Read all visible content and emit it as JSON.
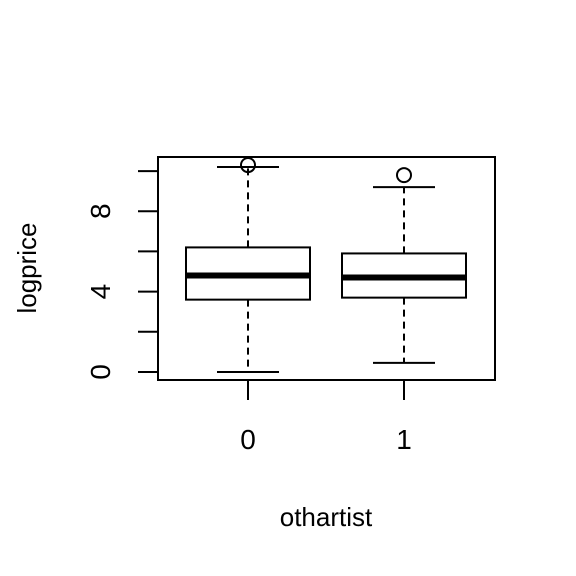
{
  "chart_data": {
    "type": "boxplot",
    "title": "",
    "xlabel": "othartist",
    "ylabel": "logprice",
    "ylim": [
      -0.4,
      10.7
    ],
    "yticks": [
      0,
      2,
      4,
      6,
      8,
      10
    ],
    "ytick_labels": [
      "0",
      "",
      "4",
      "",
      "8",
      ""
    ],
    "categories": [
      "0",
      "1"
    ],
    "boxes": [
      {
        "category": "0",
        "whisker_low": 0.0,
        "q1": 3.6,
        "median": 4.8,
        "q3": 6.2,
        "whisker_high": 10.2,
        "outliers": [
          10.3
        ]
      },
      {
        "category": "1",
        "whisker_low": 0.45,
        "q1": 3.7,
        "median": 4.7,
        "q3": 5.9,
        "whisker_high": 9.2,
        "outliers": [
          9.8
        ]
      }
    ],
    "grid": false,
    "legend": "none"
  }
}
